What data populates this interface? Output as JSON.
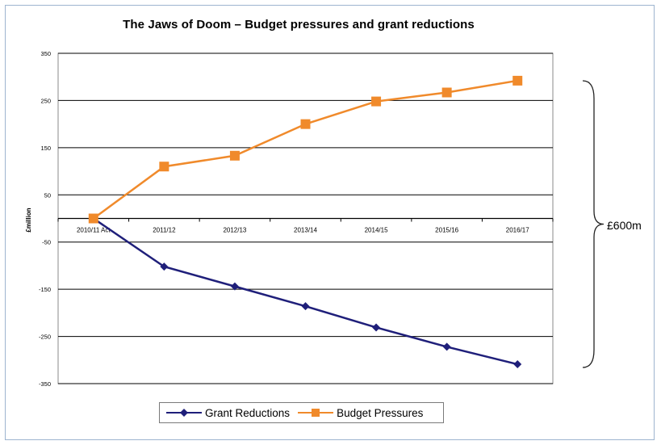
{
  "chart_data": {
    "type": "line",
    "title": "The Jaws of Doom – Budget pressures and grant reductions",
    "ylabel": "£million",
    "xlabel": "",
    "categories": [
      "2010/11 Act",
      "2011/12",
      "2012/13",
      "2013/14",
      "2014/15",
      "2015/16",
      "2016/17"
    ],
    "ylim": [
      -350,
      350
    ],
    "yticks": [
      350,
      250,
      150,
      50,
      -50,
      -150,
      -250,
      -350
    ],
    "series": [
      {
        "name": "Grant Reductions",
        "color": "#1f1f7a",
        "marker": "diamond",
        "values": [
          0,
          -102,
          -144,
          -186,
          -231,
          -272,
          -309
        ]
      },
      {
        "name": "Budget Pressures",
        "color": "#f08a2b",
        "marker": "square",
        "values": [
          0,
          110,
          133,
          200,
          248,
          267,
          292
        ]
      }
    ],
    "grid": true,
    "legend": "bottom",
    "annotation": "£600m"
  },
  "colors": {
    "frame": "#9db4cf",
    "grid": "#000000"
  }
}
